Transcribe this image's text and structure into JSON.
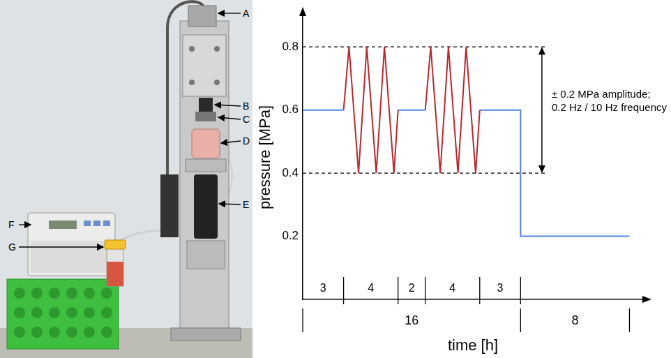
{
  "chart_data": {
    "type": "line",
    "y_label": "pressure [MPa]",
    "x_label": "time [h]",
    "series": [
      {
        "color": "#4f86d9",
        "x": [
          0,
          3
        ],
        "values": [
          0.6,
          0.6
        ]
      },
      {
        "color": "#b52a2f",
        "x": [
          3,
          3.4,
          4.1,
          4.7,
          5.4,
          6,
          6.7,
          7
        ],
        "values": [
          0.6,
          0.8,
          0.4,
          0.8,
          0.4,
          0.8,
          0.4,
          0.6
        ]
      },
      {
        "color": "#4f86d9",
        "x": [
          7,
          9
        ],
        "values": [
          0.6,
          0.6
        ]
      },
      {
        "color": "#b52a2f",
        "x": [
          9,
          9.4,
          10.1,
          10.7,
          11.4,
          12,
          12.7,
          13
        ],
        "values": [
          0.6,
          0.8,
          0.4,
          0.8,
          0.4,
          0.8,
          0.4,
          0.6
        ]
      },
      {
        "color": "#4f86d9",
        "x": [
          13,
          16,
          16,
          24
        ],
        "values": [
          0.6,
          0.6,
          0.2,
          0.2
        ]
      }
    ],
    "xlim": [
      0,
      25
    ],
    "ylim": [
      0,
      0.9
    ],
    "yticks": [
      0.2,
      0.4,
      0.6,
      0.8
    ],
    "grid": false,
    "tick_labels": "y",
    "marker": "none",
    "line_style": "solid",
    "reference_lines": [
      0.4,
      0.8
    ],
    "annotation": [
      "± 0.2 MPa amplitude;",
      "0.2 Hz / 10 Hz frequency"
    ],
    "time_segments": [
      3,
      4,
      2,
      4,
      3
    ],
    "time_totals": [
      16,
      8
    ]
  },
  "photo": {
    "callouts": [
      "A",
      "B",
      "C",
      "D",
      "E",
      "F",
      "G"
    ]
  }
}
